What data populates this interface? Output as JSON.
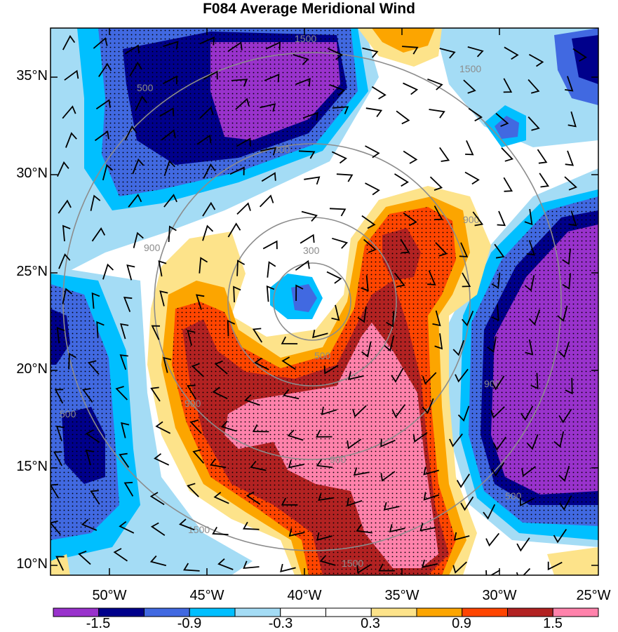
{
  "title": "F084 Average Meridional Wind",
  "lat_labels": [
    "35°N",
    "30°N",
    "25°N",
    "20°N",
    "15°N",
    "10°N"
  ],
  "lon_labels": [
    "50°W",
    "45°W",
    "40°W",
    "35°W",
    "30°W",
    "25°W"
  ],
  "colorbar": {
    "labels": [
      "-1.5",
      "-0.9",
      "-0.3",
      "0.3",
      "0.9",
      "1.5"
    ],
    "colors": [
      "#9932cc",
      "#00008b",
      "#4169e1",
      "#00bfff",
      "#a4dcf5",
      "#ffffff",
      "#ffffff",
      "#fde38a",
      "#fca500",
      "#ff4500",
      "#b22222",
      "#ff82ab"
    ]
  },
  "ring_labels": [
    "300",
    "500",
    "900",
    "1500"
  ]
}
